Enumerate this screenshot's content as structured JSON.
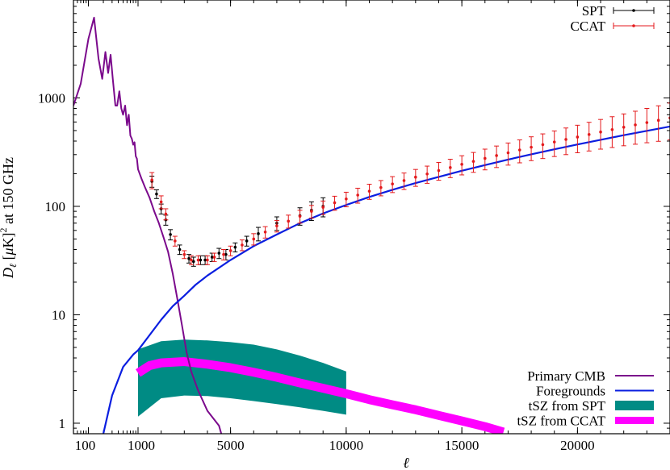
{
  "chart_data": {
    "type": "line",
    "xlabel": "ℓ",
    "ylabel": "D_ℓ [μK]² at 150 GHz",
    "ylabel_parts": {
      "var": "D",
      "sub": "ℓ",
      "rest1": " [",
      "mu": "μ",
      "rest2": "K]",
      "sup": "2",
      "rest3": " at 150 GHz"
    },
    "x_axis": {
      "log_segment": {
        "range": [
          50,
          1000
        ],
        "ticks": [
          {
            "value": 100,
            "label": "100"
          }
        ]
      },
      "linear_segment": {
        "range": [
          1000,
          24000
        ],
        "ticks": [
          {
            "value": 1000,
            "label": "1000"
          },
          {
            "value": 5000,
            "label": "5000"
          },
          {
            "value": 10000,
            "label": "10000"
          },
          {
            "value": 15000,
            "label": "15000"
          },
          {
            "value": 20000,
            "label": "20000"
          }
        ]
      }
    },
    "y_axis": {
      "scale": "log",
      "range": [
        0.8,
        8000
      ],
      "ticks": [
        {
          "value": 1,
          "label": "1"
        },
        {
          "value": 10,
          "label": "10"
        },
        {
          "value": 100,
          "label": "100"
        },
        {
          "value": 1000,
          "label": "1000"
        }
      ]
    },
    "legend_top": [
      {
        "name": "SPT",
        "color": "#000000",
        "style": "errorbar"
      },
      {
        "name": "CCAT",
        "color": "#e41a1c",
        "style": "errorbar"
      }
    ],
    "legend_bottom": [
      {
        "name": "Primary CMB",
        "color": "#7b0a8c",
        "style": "line"
      },
      {
        "name": "Foregrounds",
        "color": "#0a1ee0",
        "style": "line"
      },
      {
        "name": "tSZ from SPT",
        "color": "#008b84",
        "style": "band"
      },
      {
        "name": "tSZ from CCAT",
        "color": "#ff00ff",
        "style": "thick"
      }
    ],
    "series": [
      {
        "name": "Primary CMB",
        "color": "#7b0a8c",
        "points": [
          [
            50,
            850
          ],
          [
            70,
            1350
          ],
          [
            100,
            3500
          ],
          [
            130,
            5500
          ],
          [
            160,
            2300
          ],
          [
            190,
            1500
          ],
          [
            220,
            2650
          ],
          [
            250,
            1700
          ],
          [
            280,
            2500
          ],
          [
            310,
            1500
          ],
          [
            350,
            850
          ],
          [
            380,
            850
          ],
          [
            420,
            1150
          ],
          [
            460,
            800
          ],
          [
            500,
            700
          ],
          [
            550,
            850
          ],
          [
            600,
            560
          ],
          [
            650,
            700
          ],
          [
            700,
            450
          ],
          [
            750,
            420
          ],
          [
            800,
            370
          ],
          [
            850,
            390
          ],
          [
            900,
            290
          ],
          [
            950,
            275
          ],
          [
            1000,
            220
          ],
          [
            1150,
            180
          ],
          [
            1300,
            150
          ],
          [
            1500,
            120
          ],
          [
            1700,
            90
          ],
          [
            1900,
            70
          ],
          [
            2100,
            52
          ],
          [
            2300,
            38
          ],
          [
            2500,
            24
          ],
          [
            2700,
            14
          ],
          [
            2900,
            8
          ],
          [
            3100,
            4.5
          ],
          [
            3300,
            3
          ],
          [
            3600,
            2
          ],
          [
            4000,
            1.3
          ],
          [
            4500,
            0.95
          ],
          [
            4600,
            0.8
          ]
        ]
      },
      {
        "name": "Foregrounds",
        "color": "#0a1ee0",
        "points": [
          [
            200,
            0.8
          ],
          [
            300,
            1.8
          ],
          [
            500,
            3.3
          ],
          [
            800,
            4.3
          ],
          [
            1000,
            4.7
          ],
          [
            1500,
            6.5
          ],
          [
            2000,
            9
          ],
          [
            2500,
            12
          ],
          [
            3000,
            15
          ],
          [
            3500,
            19
          ],
          [
            4000,
            23
          ],
          [
            5000,
            32
          ],
          [
            6000,
            43
          ],
          [
            7000,
            55
          ],
          [
            8000,
            70
          ],
          [
            9000,
            86
          ],
          [
            10000,
            103
          ],
          [
            11000,
            122
          ],
          [
            12000,
            142
          ],
          [
            13000,
            164
          ],
          [
            14000,
            187
          ],
          [
            15000,
            213
          ],
          [
            16000,
            240
          ],
          [
            17000,
            270
          ],
          [
            18000,
            302
          ],
          [
            19000,
            336
          ],
          [
            20000,
            372
          ],
          [
            21000,
            411
          ],
          [
            22000,
            453
          ],
          [
            23000,
            497
          ],
          [
            24000,
            545
          ]
        ]
      },
      {
        "name": "tSZ from SPT",
        "color": "#008b84",
        "type": "band",
        "upper": [
          [
            1000,
            4.8
          ],
          [
            2000,
            5.7
          ],
          [
            3000,
            5.9
          ],
          [
            4000,
            5.8
          ],
          [
            5000,
            5.6
          ],
          [
            6000,
            5.3
          ],
          [
            7000,
            4.8
          ],
          [
            8000,
            4.2
          ],
          [
            9000,
            3.6
          ],
          [
            10000,
            3.0
          ]
        ],
        "lower": [
          [
            1000,
            1.15
          ],
          [
            2000,
            1.7
          ],
          [
            3000,
            1.8
          ],
          [
            4000,
            1.78
          ],
          [
            5000,
            1.7
          ],
          [
            6000,
            1.6
          ],
          [
            7000,
            1.5
          ],
          [
            8000,
            1.4
          ],
          [
            9000,
            1.3
          ],
          [
            10000,
            1.2
          ]
        ]
      },
      {
        "name": "tSZ from CCAT",
        "color": "#ff00ff",
        "type": "thick",
        "points": [
          [
            1000,
            2.9
          ],
          [
            1500,
            3.4
          ],
          [
            2000,
            3.6
          ],
          [
            3000,
            3.7
          ],
          [
            4000,
            3.5
          ],
          [
            5000,
            3.25
          ],
          [
            6000,
            2.95
          ],
          [
            7000,
            2.65
          ],
          [
            8000,
            2.35
          ],
          [
            9000,
            2.1
          ],
          [
            10000,
            1.87
          ],
          [
            11000,
            1.65
          ],
          [
            12000,
            1.48
          ],
          [
            13000,
            1.33
          ],
          [
            14000,
            1.18
          ],
          [
            15000,
            1.05
          ],
          [
            16000,
            0.93
          ],
          [
            16800,
            0.83
          ]
        ]
      },
      {
        "name": "SPT",
        "color": "#000000",
        "type": "errorbar",
        "points": [
          [
            1600,
            170,
            20
          ],
          [
            1800,
            130,
            12
          ],
          [
            2000,
            95,
            10
          ],
          [
            2200,
            75,
            8
          ],
          [
            2400,
            55,
            6
          ],
          [
            2800,
            40,
            4
          ],
          [
            3200,
            33,
            3
          ],
          [
            3400,
            31,
            3
          ],
          [
            3700,
            32,
            3
          ],
          [
            3900,
            32,
            3
          ],
          [
            4200,
            34,
            3
          ],
          [
            4500,
            37,
            4
          ],
          [
            4800,
            36,
            4
          ],
          [
            5200,
            42,
            4
          ],
          [
            5700,
            48,
            5
          ],
          [
            6200,
            56,
            8
          ],
          [
            7000,
            70,
            10
          ],
          [
            8000,
            82,
            15
          ],
          [
            8500,
            92,
            18
          ],
          [
            9000,
            100,
            20
          ]
        ]
      },
      {
        "name": "CCAT",
        "color": "#e41a1c",
        "type": "errorbar",
        "points": [
          [
            1600,
            175,
            30
          ],
          [
            2000,
            110,
            15
          ],
          [
            2200,
            85,
            10
          ],
          [
            2600,
            48,
            5
          ],
          [
            3000,
            36,
            3
          ],
          [
            3300,
            32,
            3
          ],
          [
            3600,
            32,
            3
          ],
          [
            4000,
            32,
            3
          ],
          [
            4300,
            34,
            3
          ],
          [
            4700,
            36,
            4
          ],
          [
            5000,
            39,
            4
          ],
          [
            5500,
            44,
            5
          ],
          [
            6000,
            50,
            6
          ],
          [
            6500,
            58,
            7
          ],
          [
            7000,
            66,
            8
          ],
          [
            7500,
            73,
            10
          ],
          [
            8000,
            81,
            11
          ],
          [
            8500,
            90,
            12
          ],
          [
            9000,
            98,
            14
          ],
          [
            9500,
            108,
            16
          ],
          [
            10000,
            117,
            18
          ],
          [
            10500,
            127,
            20
          ],
          [
            11000,
            138,
            22
          ],
          [
            11500,
            149,
            24
          ],
          [
            12000,
            161,
            27
          ],
          [
            12500,
            173,
            30
          ],
          [
            13000,
            186,
            33
          ],
          [
            13500,
            199,
            36
          ],
          [
            14000,
            214,
            40
          ],
          [
            14500,
            228,
            44
          ],
          [
            15000,
            244,
            49
          ],
          [
            15500,
            260,
            54
          ],
          [
            16000,
            277,
            60
          ],
          [
            16500,
            294,
            66
          ],
          [
            17000,
            312,
            72
          ],
          [
            17500,
            331,
            79
          ],
          [
            18000,
            351,
            87
          ],
          [
            18500,
            371,
            95
          ],
          [
            19000,
            392,
            104
          ],
          [
            19500,
            414,
            114
          ],
          [
            20000,
            436,
            124
          ],
          [
            20500,
            460,
            136
          ],
          [
            21000,
            485,
            148
          ],
          [
            21500,
            510,
            161
          ],
          [
            22000,
            537,
            175
          ],
          [
            22500,
            564,
            190
          ],
          [
            23000,
            593,
            207
          ],
          [
            23500,
            622,
            224
          ],
          [
            24000,
            653,
            243
          ]
        ]
      }
    ]
  }
}
